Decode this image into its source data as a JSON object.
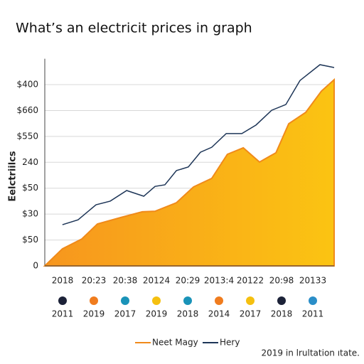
{
  "chart_data": {
    "type": "area_line",
    "title": "What’s an electricit prices in graph",
    "ylabel": "Eelctriilcs",
    "footnote": "2019 in lrultation ıtate.",
    "xlim": [
      0,
      100
    ],
    "ylim": [
      0,
      8
    ],
    "yticks": [
      {
        "value": 0,
        "label": "0"
      },
      {
        "value": 1,
        "label": "$50"
      },
      {
        "value": 2,
        "label": "$30"
      },
      {
        "value": 3,
        "label": "$50"
      },
      {
        "value": 4,
        "label": "240"
      },
      {
        "value": 5,
        "label": "$550"
      },
      {
        "value": 6,
        "label": "$660"
      },
      {
        "value": 7,
        "label": "$400"
      }
    ],
    "xtick_labels": [
      "2018",
      "20:23",
      "20:38",
      "20124",
      "20:29",
      "2013:4",
      "20122",
      "20:98",
      "20133"
    ],
    "dot_legend": [
      {
        "label": "2011",
        "color": "#1c2238"
      },
      {
        "label": "2019",
        "color": "#f07c1e"
      },
      {
        "label": "2017",
        "color": "#1a93b8"
      },
      {
        "label": "2019",
        "color": "#f5c010"
      },
      {
        "label": "2018",
        "color": "#1a93b8"
      },
      {
        "label": "2014",
        "color": "#f07c1e"
      },
      {
        "label": "2017",
        "color": "#f5c010"
      },
      {
        "label": "2018",
        "color": "#1c2238"
      },
      {
        "label": "2011",
        "color": "#2a8ec8"
      }
    ],
    "series": [
      {
        "name": "Neet Magy",
        "color": "#f08a1a",
        "fill": true,
        "x": [
          0,
          6.1,
          12.8,
          18.2,
          26.3,
          33.7,
          38.1,
          45.5,
          51.4,
          57.7,
          63.1,
          68.6,
          74.2,
          79.9,
          84.3,
          90.2,
          95.6,
          100
        ],
        "values": [
          0,
          0.66,
          1.04,
          1.62,
          1.87,
          2.09,
          2.11,
          2.44,
          3.05,
          3.38,
          4.31,
          4.56,
          4.01,
          4.37,
          5.49,
          5.93,
          6.75,
          7.19
        ]
      },
      {
        "name": "Hery",
        "color": "#1d3557",
        "fill": false,
        "x": [
          6.1,
          11.5,
          17.7,
          22.6,
          28.3,
          34.2,
          38.1,
          41.5,
          45.5,
          49.6,
          53.8,
          57.7,
          62.7,
          68.1,
          73.0,
          78.4,
          83.3,
          88.2,
          95.1,
          100
        ],
        "values": [
          1.59,
          1.78,
          2.36,
          2.5,
          2.91,
          2.69,
          3.07,
          3.13,
          3.68,
          3.82,
          4.39,
          4.58,
          5.11,
          5.11,
          5.44,
          6.01,
          6.23,
          7.16,
          7.77,
          7.66
        ]
      }
    ]
  }
}
